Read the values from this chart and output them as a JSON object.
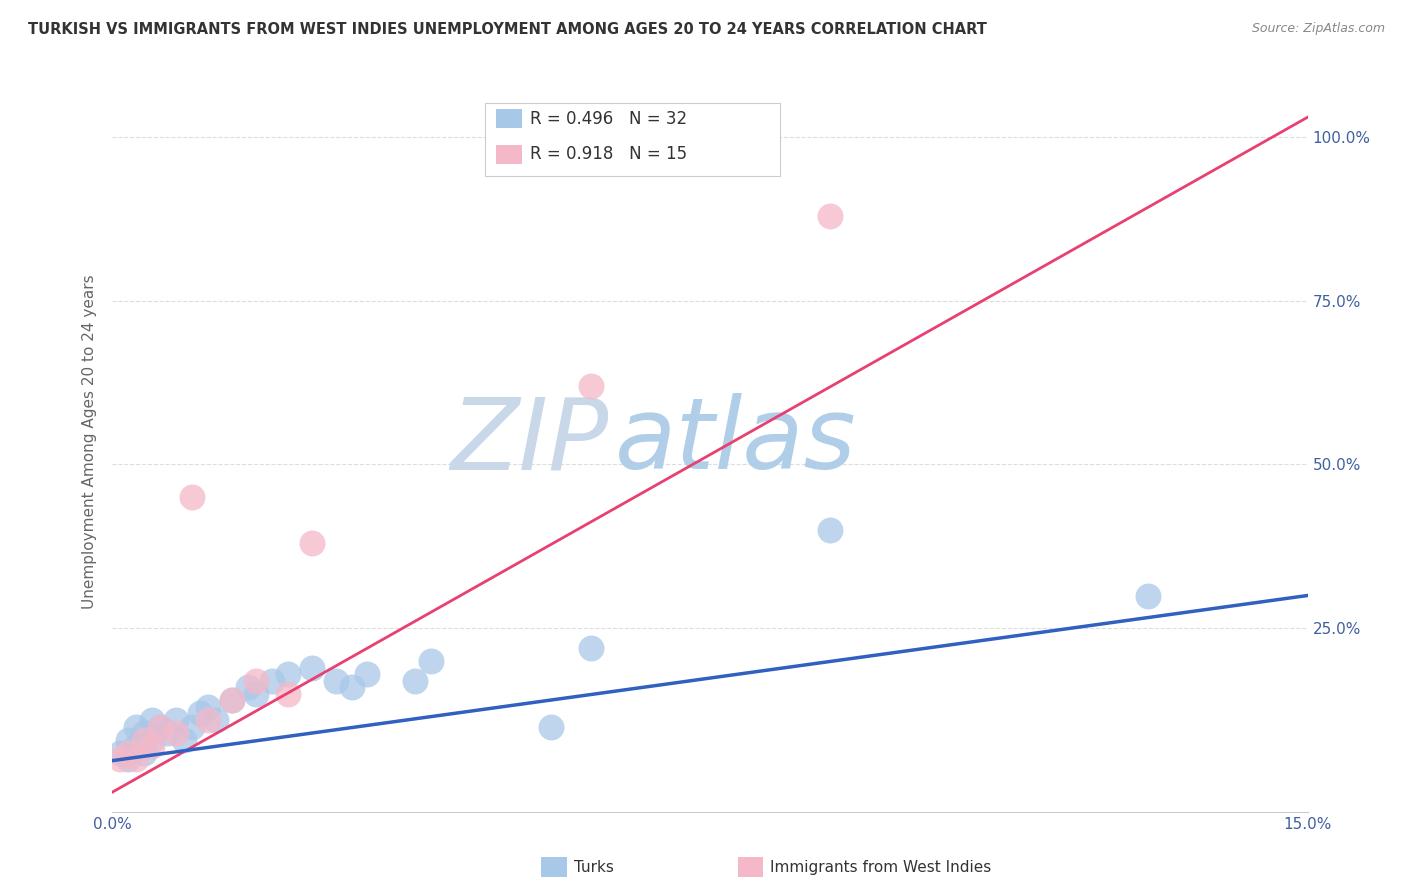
{
  "title": "TURKISH VS IMMIGRANTS FROM WEST INDIES UNEMPLOYMENT AMONG AGES 20 TO 24 YEARS CORRELATION CHART",
  "source": "Source: ZipAtlas.com",
  "ylabel": "Unemployment Among Ages 20 to 24 years",
  "right_yticks": [
    "100.0%",
    "75.0%",
    "50.0%",
    "25.0%"
  ],
  "right_ytick_vals": [
    1.0,
    0.75,
    0.5,
    0.25
  ],
  "legend_blue_r": "R = 0.496",
  "legend_blue_n": "N = 32",
  "legend_pink_r": "R = 0.918",
  "legend_pink_n": "N = 15",
  "legend_label_blue": "Turks",
  "legend_label_pink": "Immigrants from West Indies",
  "blue_color": "#A8C8E8",
  "pink_color": "#F4B8C8",
  "line_blue_color": "#3060C0",
  "line_pink_color": "#E84070",
  "background_color": "#ffffff",
  "watermark_zip": "ZIP",
  "watermark_atlas": "atlas",
  "watermark_zip_color": "#C8D8E8",
  "watermark_atlas_color": "#B0CEE8",
  "xlim": [
    0.0,
    0.15
  ],
  "ylim": [
    -0.03,
    1.1
  ],
  "turks_x": [
    0.001,
    0.002,
    0.002,
    0.003,
    0.003,
    0.004,
    0.004,
    0.005,
    0.005,
    0.006,
    0.007,
    0.008,
    0.009,
    0.01,
    0.011,
    0.012,
    0.013,
    0.015,
    0.017,
    0.018,
    0.02,
    0.022,
    0.025,
    0.028,
    0.03,
    0.032,
    0.038,
    0.04,
    0.055,
    0.06,
    0.09,
    0.13
  ],
  "turks_y": [
    0.06,
    0.05,
    0.08,
    0.07,
    0.1,
    0.06,
    0.09,
    0.08,
    0.11,
    0.1,
    0.09,
    0.11,
    0.08,
    0.1,
    0.12,
    0.13,
    0.11,
    0.14,
    0.16,
    0.15,
    0.17,
    0.18,
    0.19,
    0.17,
    0.16,
    0.18,
    0.17,
    0.2,
    0.1,
    0.22,
    0.4,
    0.3
  ],
  "west_indies_x": [
    0.001,
    0.002,
    0.003,
    0.004,
    0.005,
    0.006,
    0.008,
    0.01,
    0.012,
    0.015,
    0.018,
    0.022,
    0.025,
    0.06,
    0.09
  ],
  "west_indies_y": [
    0.05,
    0.06,
    0.05,
    0.08,
    0.07,
    0.1,
    0.09,
    0.45,
    0.11,
    0.14,
    0.17,
    0.15,
    0.38,
    0.62,
    0.88
  ],
  "pink_line_x0": 0.0,
  "pink_line_y0": 0.0,
  "pink_line_x1": 0.15,
  "pink_line_y1": 1.03,
  "blue_line_x0": 0.0,
  "blue_line_y0": 0.048,
  "blue_line_x1": 0.15,
  "blue_line_y1": 0.3
}
